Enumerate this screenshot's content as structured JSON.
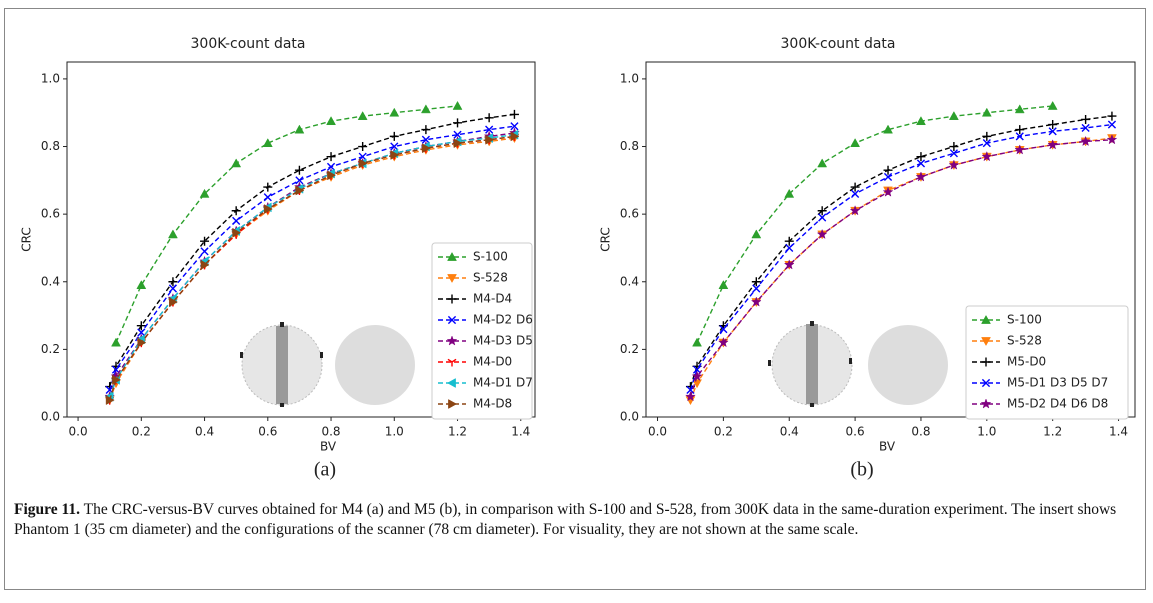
{
  "chart_data": [
    {
      "type": "line",
      "title": "300K-count data",
      "x_label": "BV",
      "y_label": "CRC",
      "panel_label": "(a)",
      "x": [
        0.1,
        0.12,
        0.2,
        0.3,
        0.4,
        0.5,
        0.6,
        0.7,
        0.8,
        0.9,
        1.0,
        1.1,
        1.2,
        1.3,
        1.38
      ],
      "xlim": [
        -0.035,
        1.445
      ],
      "ylim": [
        0,
        1.05
      ],
      "xticks": [
        {
          "value": 0,
          "label": "0.0"
        },
        0.2,
        0.4,
        0.6,
        0.8,
        {
          "value": 1,
          "label": "1.0"
        },
        1.2,
        1.4
      ],
      "yticks": [
        {
          "value": 0,
          "label": "0.0"
        },
        0.2,
        0.4,
        0.6,
        0.8,
        {
          "value": 1,
          "label": "1.0"
        }
      ],
      "legend": "lower right",
      "series": [
        {
          "name": "S-100",
          "color": "#2ca02c",
          "marker": "^",
          "values": [
            null,
            0.22,
            0.39,
            0.54,
            0.66,
            0.75,
            0.81,
            0.85,
            0.875,
            0.89,
            0.9,
            0.91,
            0.92,
            null,
            null
          ]
        },
        {
          "name": "S-528",
          "color": "#ff7f0e",
          "marker": "v",
          "values": [
            0.05,
            0.1,
            0.22,
            0.34,
            0.45,
            0.54,
            0.61,
            0.67,
            0.71,
            0.745,
            0.77,
            0.79,
            0.805,
            0.815,
            0.825
          ]
        },
        {
          "name": "M4-D4",
          "color": "#000000",
          "marker": "+",
          "values": [
            0.09,
            0.15,
            0.27,
            0.4,
            0.52,
            0.61,
            0.68,
            0.73,
            0.77,
            0.8,
            0.83,
            0.85,
            0.87,
            0.885,
            0.895
          ]
        },
        {
          "name": "M4-D2 D6",
          "color": "#0000ff",
          "marker": "x",
          "values": [
            0.08,
            0.14,
            0.25,
            0.38,
            0.49,
            0.58,
            0.65,
            0.7,
            0.74,
            0.77,
            0.8,
            0.82,
            0.835,
            0.85,
            0.86
          ]
        },
        {
          "name": "M4-D3 D5",
          "color": "#800080",
          "marker": "*",
          "values": [
            0.06,
            0.12,
            0.23,
            0.35,
            0.46,
            0.55,
            0.62,
            0.68,
            0.72,
            0.75,
            0.78,
            0.8,
            0.815,
            0.83,
            0.84
          ]
        },
        {
          "name": "M4-D0",
          "color": "#ff0000",
          "marker": "1",
          "values": [
            0.05,
            0.11,
            0.22,
            0.34,
            0.45,
            0.54,
            0.615,
            0.67,
            0.715,
            0.75,
            0.775,
            0.795,
            0.81,
            0.82,
            0.83
          ]
        },
        {
          "name": "M4-D1 D7",
          "color": "#17becf",
          "marker": "<",
          "values": [
            0.06,
            0.11,
            0.23,
            0.35,
            0.46,
            0.55,
            0.62,
            0.675,
            0.72,
            0.75,
            0.78,
            0.8,
            0.815,
            0.825,
            0.835
          ]
        },
        {
          "name": "M4-D8",
          "color": "#8c4513",
          "marker": ">",
          "values": [
            0.05,
            0.11,
            0.22,
            0.34,
            0.45,
            0.545,
            0.615,
            0.67,
            0.715,
            0.75,
            0.775,
            0.795,
            0.81,
            0.82,
            0.83
          ]
        }
      ]
    },
    {
      "type": "line",
      "title": "300K-count data",
      "x_label": "BV",
      "y_label": "CRC",
      "panel_label": "(b)",
      "x": [
        0.1,
        0.12,
        0.2,
        0.3,
        0.4,
        0.5,
        0.6,
        0.7,
        0.8,
        0.9,
        1.0,
        1.1,
        1.2,
        1.3,
        1.38
      ],
      "xlim": [
        -0.035,
        1.45
      ],
      "ylim": [
        0,
        1.05
      ],
      "xticks": [
        {
          "value": 0,
          "label": "0.0"
        },
        0.2,
        0.4,
        0.6,
        0.8,
        {
          "value": 1,
          "label": "1.0"
        },
        1.2,
        1.4
      ],
      "yticks": [
        {
          "value": 0,
          "label": "0.0"
        },
        0.2,
        0.4,
        0.6,
        0.8,
        {
          "value": 1,
          "label": "1.0"
        }
      ],
      "legend": "lower right",
      "series": [
        {
          "name": "S-100",
          "color": "#2ca02c",
          "marker": "^",
          "values": [
            null,
            0.22,
            0.39,
            0.54,
            0.66,
            0.75,
            0.81,
            0.85,
            0.875,
            0.89,
            0.9,
            0.91,
            0.92,
            null,
            null
          ]
        },
        {
          "name": "S-528",
          "color": "#ff7f0e",
          "marker": "v",
          "values": [
            0.05,
            0.1,
            0.22,
            0.34,
            0.45,
            0.54,
            0.61,
            0.67,
            0.71,
            0.745,
            0.77,
            0.79,
            0.805,
            0.815,
            0.825
          ]
        },
        {
          "name": "M5-D0",
          "color": "#000000",
          "marker": "+",
          "values": [
            0.09,
            0.15,
            0.27,
            0.4,
            0.52,
            0.61,
            0.68,
            0.73,
            0.77,
            0.8,
            0.83,
            0.85,
            0.865,
            0.88,
            0.89
          ]
        },
        {
          "name": "M5-D1 D3 D5 D7",
          "color": "#0000ff",
          "marker": "x",
          "values": [
            0.08,
            0.14,
            0.26,
            0.38,
            0.5,
            0.59,
            0.66,
            0.71,
            0.75,
            0.78,
            0.81,
            0.83,
            0.845,
            0.855,
            0.865
          ]
        },
        {
          "name": "M5-D2 D4 D6 D8",
          "color": "#800080",
          "marker": "*",
          "values": [
            0.06,
            0.12,
            0.22,
            0.34,
            0.45,
            0.54,
            0.61,
            0.665,
            0.71,
            0.745,
            0.77,
            0.79,
            0.805,
            0.815,
            0.82
          ]
        }
      ]
    }
  ],
  "caption": {
    "label": "Figure 11.",
    "text": "The CRC-versus-BV curves obtained for M4 (a) and M5 (b), in comparison with S-100 and S-528, from 300K data in the same-duration experiment. The insert shows Phantom 1 (35 cm diameter) and the configurations of the scanner (78 cm diameter). For visuality, they are not shown at the same scale."
  }
}
